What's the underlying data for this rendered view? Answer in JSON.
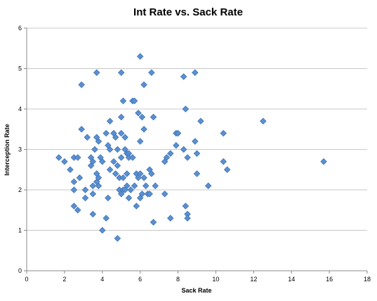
{
  "chart_data": {
    "type": "scatter",
    "title": "Int Rate vs. Sack Rate",
    "xlabel": "Sack Rate",
    "ylabel": "Interception Rate",
    "xlim": [
      0,
      18
    ],
    "ylim": [
      0,
      6
    ],
    "xticks": [
      0,
      2,
      4,
      6,
      8,
      10,
      12,
      14,
      16,
      18
    ],
    "yticks": [
      0,
      1,
      2,
      3,
      4,
      5,
      6
    ],
    "grid": "horizontal",
    "legend": "none",
    "marker_color": "#5b8fd0",
    "series": [
      {
        "points": [
          [
            1.7,
            2.8
          ],
          [
            2.0,
            2.7
          ],
          [
            2.3,
            2.5
          ],
          [
            2.5,
            2.8
          ],
          [
            2.5,
            2.2
          ],
          [
            2.5,
            2.0
          ],
          [
            2.5,
            1.6
          ],
          [
            2.7,
            1.5
          ],
          [
            2.7,
            2.8
          ],
          [
            2.8,
            2.3
          ],
          [
            2.9,
            4.6
          ],
          [
            2.9,
            3.5
          ],
          [
            3.1,
            2.0
          ],
          [
            3.1,
            1.8
          ],
          [
            3.2,
            3.3
          ],
          [
            3.4,
            2.6
          ],
          [
            3.4,
            2.8
          ],
          [
            3.5,
            2.7
          ],
          [
            3.5,
            2.1
          ],
          [
            3.5,
            1.9
          ],
          [
            3.5,
            1.4
          ],
          [
            3.6,
            3.0
          ],
          [
            3.7,
            4.9
          ],
          [
            3.7,
            3.3
          ],
          [
            3.7,
            2.2
          ],
          [
            3.7,
            2.4
          ],
          [
            3.8,
            3.2
          ],
          [
            3.8,
            2.1
          ],
          [
            3.8,
            2.3
          ],
          [
            3.9,
            2.8
          ],
          [
            4.0,
            2.7
          ],
          [
            4.0,
            1.0
          ],
          [
            4.2,
            1.3
          ],
          [
            4.2,
            3.4
          ],
          [
            4.3,
            3.1
          ],
          [
            4.3,
            1.8
          ],
          [
            4.4,
            3.7
          ],
          [
            4.4,
            3.0
          ],
          [
            4.4,
            2.5
          ],
          [
            4.6,
            2.7
          ],
          [
            4.6,
            3.4
          ],
          [
            4.7,
            3.3
          ],
          [
            4.7,
            2.4
          ],
          [
            4.8,
            2.6
          ],
          [
            4.8,
            3.0
          ],
          [
            4.8,
            0.8
          ],
          [
            4.9,
            2.3
          ],
          [
            4.9,
            2.0
          ],
          [
            5.0,
            3.8
          ],
          [
            5.0,
            3.4
          ],
          [
            5.0,
            4.9
          ],
          [
            5.0,
            2.8
          ],
          [
            5.0,
            1.9
          ],
          [
            5.1,
            4.2
          ],
          [
            5.1,
            2.3
          ],
          [
            5.1,
            2.0
          ],
          [
            5.2,
            3.0
          ],
          [
            5.2,
            2.0
          ],
          [
            5.2,
            3.3
          ],
          [
            5.3,
            2.4
          ],
          [
            5.3,
            2.1
          ],
          [
            5.3,
            2.9
          ],
          [
            5.4,
            2.9
          ],
          [
            5.4,
            2.8
          ],
          [
            5.4,
            1.8
          ],
          [
            5.5,
            2.0
          ],
          [
            5.6,
            4.2
          ],
          [
            5.6,
            2.8
          ],
          [
            5.7,
            2.1
          ],
          [
            5.7,
            4.2
          ],
          [
            5.8,
            2.4
          ],
          [
            5.8,
            1.6
          ],
          [
            5.9,
            3.9
          ],
          [
            5.9,
            2.3
          ],
          [
            6.0,
            5.3
          ],
          [
            6.0,
            3.2
          ],
          [
            6.0,
            2.4
          ],
          [
            6.0,
            1.8
          ],
          [
            6.1,
            3.8
          ],
          [
            6.1,
            1.9
          ],
          [
            6.2,
            4.6
          ],
          [
            6.2,
            3.5
          ],
          [
            6.2,
            2.3
          ],
          [
            6.3,
            2.1
          ],
          [
            6.4,
            1.9
          ],
          [
            6.5,
            2.5
          ],
          [
            6.5,
            1.9
          ],
          [
            6.6,
            4.9
          ],
          [
            6.6,
            2.4
          ],
          [
            6.7,
            3.8
          ],
          [
            6.7,
            1.2
          ],
          [
            6.8,
            2.1
          ],
          [
            7.3,
            2.7
          ],
          [
            7.3,
            1.9
          ],
          [
            7.4,
            2.8
          ],
          [
            7.6,
            2.9
          ],
          [
            7.6,
            1.3
          ],
          [
            7.9,
            3.4
          ],
          [
            7.9,
            3.1
          ],
          [
            8.0,
            3.4
          ],
          [
            8.3,
            4.8
          ],
          [
            8.3,
            3.0
          ],
          [
            8.4,
            4.0
          ],
          [
            8.4,
            1.6
          ],
          [
            8.5,
            2.8
          ],
          [
            8.5,
            1.4
          ],
          [
            8.5,
            1.3
          ],
          [
            8.9,
            3.2
          ],
          [
            8.9,
            4.9
          ],
          [
            9.0,
            2.9
          ],
          [
            9.0,
            2.4
          ],
          [
            9.2,
            3.7
          ],
          [
            9.6,
            2.1
          ],
          [
            10.4,
            3.4
          ],
          [
            10.4,
            2.7
          ],
          [
            10.6,
            2.5
          ],
          [
            12.5,
            3.7
          ],
          [
            15.7,
            2.7
          ]
        ]
      }
    ]
  }
}
